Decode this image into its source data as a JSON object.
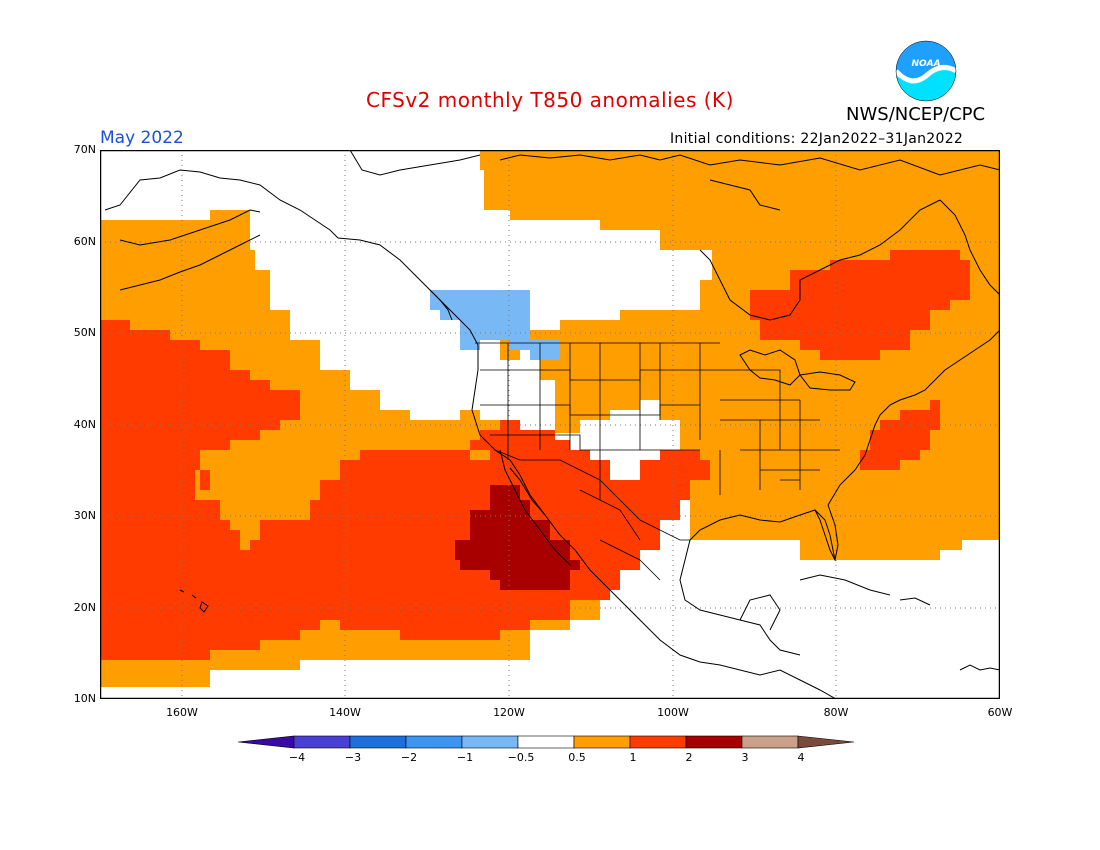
{
  "title": "CFSv2 monthly T850 anomalies (K)",
  "organization": "NWS/NCEP/CPC",
  "logo_text": "NOAA",
  "period": "May 2022",
  "initial_conditions": "Initial conditions: 22Jan2022–31Jan2022",
  "lat_labels": [
    "70N",
    "60N",
    "50N",
    "40N",
    "30N",
    "20N",
    "10N"
  ],
  "lon_labels": [
    "160W",
    "140W",
    "120W",
    "100W",
    "80W",
    "60W"
  ],
  "colorbar": {
    "ticks": [
      "−4",
      "−3",
      "−2",
      "−1",
      "−0.5",
      "0.5",
      "1",
      "2",
      "3",
      "4"
    ],
    "colors": [
      "#3a0aa8",
      "#4a3fd4",
      "#1e6fdc",
      "#3e95f0",
      "#78b8f5",
      "#ffffff",
      "#ff9e00",
      "#ff3b00",
      "#a80000",
      "#c9a08a",
      "#7a4a3a"
    ]
  },
  "anomaly_colors": {
    "warm_0_5_to_1": "#ff9e00",
    "warm_1_to_2": "#ff3b00",
    "warm_2_to_3": "#a80000",
    "cool_minus_1_to_minus_0_5": "#78b8f5",
    "neutral": "#ffffff"
  }
}
